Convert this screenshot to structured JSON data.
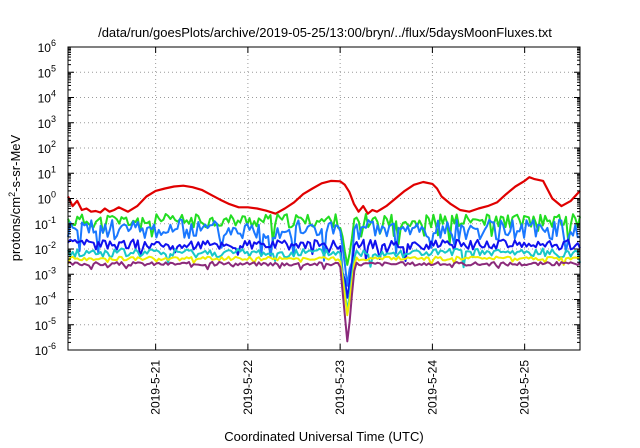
{
  "chart_data": {
    "type": "line",
    "title": "/data/run/goesPlots/archive/2019-05-25/13:00/bryn/../flux/5daysMoonFluxes.txt",
    "xlabel": "Coordinated Universal Time (UTC)",
    "ylabel": "protons/cm2-s-sr-MeV",
    "ylabel_parts": [
      "protons/cm",
      "2",
      "-s-sr-MeV"
    ],
    "yscale": "log",
    "ylim": [
      1e-06,
      1000000.0
    ],
    "xlim": [
      20.05,
      25.6
    ],
    "xlim_meaning": "days of May 2019",
    "grid": true,
    "y_ticks": [
      {
        "value": -6,
        "base": "10",
        "exp": "-6"
      },
      {
        "value": -5,
        "base": "10",
        "exp": "-5"
      },
      {
        "value": -4,
        "base": "10",
        "exp": "-4"
      },
      {
        "value": -3,
        "base": "10",
        "exp": "-3"
      },
      {
        "value": -2,
        "base": "10",
        "exp": "-2"
      },
      {
        "value": -1,
        "base": "10",
        "exp": "-1"
      },
      {
        "value": 0,
        "base": "10",
        "exp": "0"
      },
      {
        "value": 1,
        "base": "10",
        "exp": "1"
      },
      {
        "value": 2,
        "base": "10",
        "exp": "2"
      },
      {
        "value": 3,
        "base": "10",
        "exp": "3"
      },
      {
        "value": 4,
        "base": "10",
        "exp": "4"
      },
      {
        "value": 5,
        "base": "10",
        "exp": "5"
      },
      {
        "value": 6,
        "base": "10",
        "exp": "6"
      }
    ],
    "x_ticks": [
      {
        "value": 21,
        "label": "2019-5-21"
      },
      {
        "value": 22,
        "label": "2019-5-22"
      },
      {
        "value": 23,
        "label": "2019-5-23"
      },
      {
        "value": 24,
        "label": "2019-5-24"
      },
      {
        "value": 25,
        "label": "2019-5-25"
      }
    ],
    "series": [
      {
        "color": "#e00000",
        "width": 2.2,
        "x": [
          20.05,
          20.1,
          20.15,
          20.2,
          20.25,
          20.3,
          20.35,
          20.4,
          20.45,
          20.5,
          20.55,
          20.6,
          20.7,
          20.8,
          20.9,
          21.0,
          21.1,
          21.2,
          21.3,
          21.4,
          21.5,
          21.6,
          21.7,
          21.8,
          21.9,
          22.0,
          22.1,
          22.2,
          22.3,
          22.4,
          22.5,
          22.6,
          22.7,
          22.8,
          22.9,
          23.0,
          23.05,
          23.1,
          23.15,
          23.2,
          23.25,
          23.3,
          23.35,
          23.4,
          23.5,
          23.6,
          23.7,
          23.8,
          23.9,
          24.0,
          24.05,
          24.1,
          24.2,
          24.3,
          24.4,
          24.5,
          24.6,
          24.7,
          24.8,
          24.9,
          25.0,
          25.05,
          25.1,
          25.2,
          25.3,
          25.4,
          25.5,
          25.6
        ],
        "y": [
          1.2,
          0.5,
          0.8,
          0.35,
          0.4,
          0.3,
          0.32,
          0.28,
          0.4,
          0.3,
          0.35,
          0.45,
          0.3,
          0.5,
          1.2,
          2.0,
          2.5,
          3.0,
          3.2,
          2.8,
          2.2,
          1.4,
          0.9,
          0.6,
          0.45,
          0.45,
          0.4,
          0.33,
          0.25,
          0.4,
          0.7,
          1.5,
          2.5,
          4.0,
          5.0,
          4.8,
          3.5,
          1.8,
          0.6,
          0.3,
          0.5,
          0.25,
          0.35,
          0.3,
          0.5,
          1.0,
          2.0,
          3.5,
          4.5,
          3.8,
          2.5,
          1.2,
          0.6,
          0.35,
          0.3,
          0.4,
          0.5,
          0.7,
          1.5,
          3.0,
          5.0,
          7.0,
          6.0,
          5.0,
          1.0,
          0.5,
          0.8,
          2.0
        ]
      },
      {
        "color": "#22dd22",
        "width": 2.0,
        "base": 0.13,
        "amp": 0.55,
        "seed": 11
      },
      {
        "color": "#1a78ff",
        "width": 2.0,
        "base": 0.06,
        "amp": 0.8,
        "seed": 23
      },
      {
        "color": "#1010ee",
        "width": 2.0,
        "base": 0.015,
        "amp": 0.4,
        "seed": 37
      },
      {
        "color": "#18c8c8",
        "width": 2.0,
        "base": 0.007,
        "amp": 0.35,
        "seed": 41
      },
      {
        "color": "#eeee00",
        "width": 2.0,
        "base": 0.0042,
        "amp": 0.15,
        "seed": 53
      },
      {
        "color": "#8b2a7a",
        "width": 2.0,
        "base": 0.0026,
        "amp": 0.15,
        "seed": 67
      }
    ],
    "dip": {
      "x": 23.08,
      "min_values": [
        null,
        0.002,
        0.0003,
        0.0001,
        3e-05,
        2e-05,
        1.7e-06
      ]
    }
  }
}
